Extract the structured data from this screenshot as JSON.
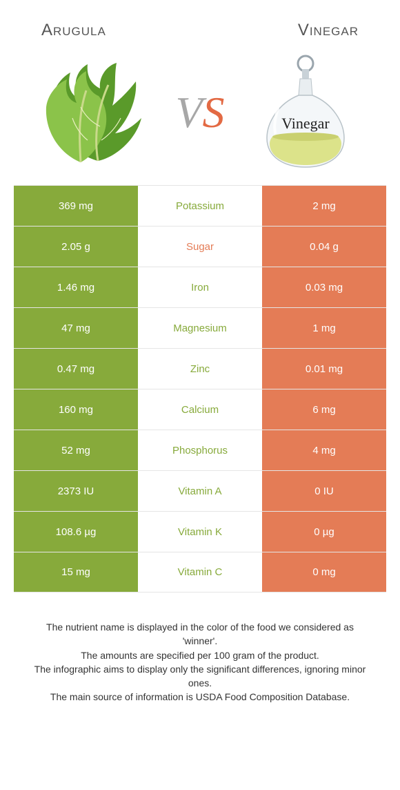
{
  "titles": {
    "left": "Arugula",
    "right": "Vinegar"
  },
  "vs": {
    "v": "V",
    "s": "S"
  },
  "colors": {
    "left_bg": "#87aa3b",
    "right_bg": "#e47c56",
    "label_green": "#87aa3b",
    "label_orange": "#e47c56",
    "row_border": "#e5e5e5"
  },
  "rows": [
    {
      "label": "Potassium",
      "left": "369 mg",
      "right": "2 mg",
      "winner": "left"
    },
    {
      "label": "Sugar",
      "left": "2.05 g",
      "right": "0.04 g",
      "winner": "right"
    },
    {
      "label": "Iron",
      "left": "1.46 mg",
      "right": "0.03 mg",
      "winner": "left"
    },
    {
      "label": "Magnesium",
      "left": "47 mg",
      "right": "1 mg",
      "winner": "left"
    },
    {
      "label": "Zinc",
      "left": "0.47 mg",
      "right": "0.01 mg",
      "winner": "left"
    },
    {
      "label": "Calcium",
      "left": "160 mg",
      "right": "6 mg",
      "winner": "left"
    },
    {
      "label": "Phosphorus",
      "left": "52 mg",
      "right": "4 mg",
      "winner": "left"
    },
    {
      "label": "Vitamin A",
      "left": "2373 IU",
      "right": "0 IU",
      "winner": "left"
    },
    {
      "label": "Vitamin K",
      "left": "108.6 µg",
      "right": "0 µg",
      "winner": "left"
    },
    {
      "label": "Vitamin C",
      "left": "15 mg",
      "right": "0 mg",
      "winner": "left"
    }
  ],
  "footer": [
    "The nutrient name is displayed in the color of the food we considered as 'winner'.",
    "The amounts are specified per 100 gram of the product.",
    "The infographic aims to display only the significant differences, ignoring minor ones.",
    "The main source of information is USDA Food Composition Database."
  ],
  "vinegar_label": "Vinegar"
}
